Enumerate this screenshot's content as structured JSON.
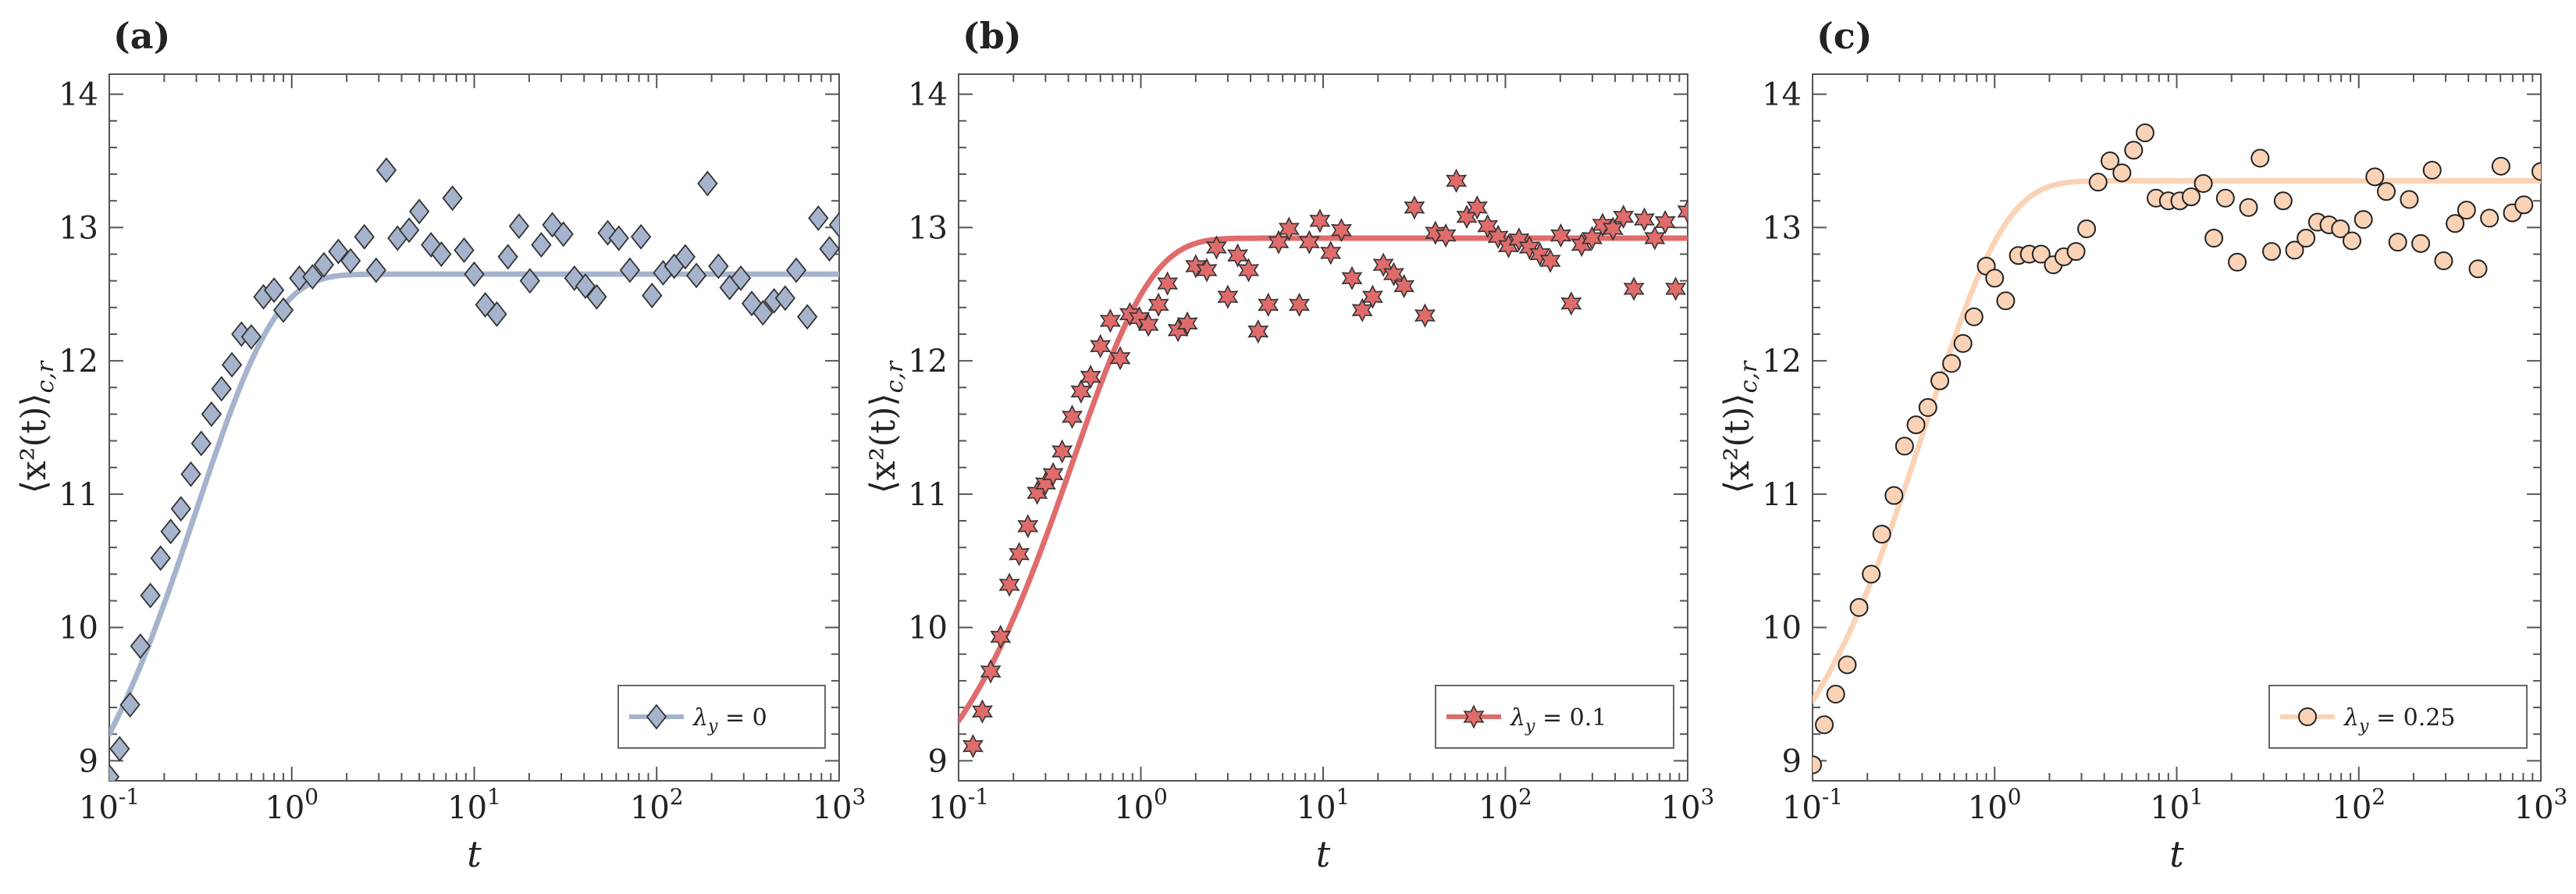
{
  "chart_data": [
    {
      "panel": "(a)",
      "type": "scatter",
      "xscale": "log",
      "xlim": [
        0.1,
        1000
      ],
      "ylim": [
        8.85,
        14.15
      ],
      "xticks": [
        {
          "base": "10",
          "exp": "-1"
        },
        {
          "base": "10",
          "exp": "0"
        },
        {
          "base": "10",
          "exp": "1"
        },
        {
          "base": "10",
          "exp": "2"
        },
        {
          "base": "10",
          "exp": "3"
        }
      ],
      "yticks": [
        "9",
        "10",
        "11",
        "12",
        "13",
        "14"
      ],
      "xlabel": "t",
      "ylabel": "⟨x²(t)⟩",
      "ylabel_sub": "c,r",
      "legend": {
        "symbol": "λ",
        "sub": "y",
        "text": " = 0",
        "placement": "bottom-right"
      },
      "marker": "diamond",
      "color": "#a5b4cc",
      "edge": "#333333",
      "fit": {
        "plateau": 12.65,
        "y0": 9.2,
        "tau": 0.3
      },
      "points": [
        [
          0.1,
          8.88
        ],
        [
          0.114,
          9.09
        ],
        [
          0.13,
          9.42
        ],
        [
          0.148,
          9.86
        ],
        [
          0.168,
          10.24
        ],
        [
          0.191,
          10.52
        ],
        [
          0.217,
          10.72
        ],
        [
          0.247,
          10.89
        ],
        [
          0.28,
          11.15
        ],
        [
          0.319,
          11.38
        ],
        [
          0.363,
          11.6
        ],
        [
          0.412,
          11.79
        ],
        [
          0.47,
          11.97
        ],
        [
          0.53,
          12.2
        ],
        [
          0.6,
          12.18
        ],
        [
          0.7,
          12.48
        ],
        [
          0.8,
          12.53
        ],
        [
          0.9,
          12.38
        ],
        [
          1.1,
          12.62
        ],
        [
          1.3,
          12.63
        ],
        [
          1.5,
          12.72
        ],
        [
          1.8,
          12.82
        ],
        [
          2.1,
          12.75
        ],
        [
          2.5,
          12.93
        ],
        [
          2.9,
          12.68
        ],
        [
          3.3,
          13.43
        ],
        [
          3.8,
          12.92
        ],
        [
          4.4,
          12.98
        ],
        [
          5.0,
          13.12
        ],
        [
          5.8,
          12.87
        ],
        [
          6.6,
          12.8
        ],
        [
          7.6,
          13.22
        ],
        [
          8.8,
          12.83
        ],
        [
          10.0,
          12.65
        ],
        [
          11.5,
          12.42
        ],
        [
          13.3,
          12.35
        ],
        [
          15.3,
          12.78
        ],
        [
          17.6,
          13.01
        ],
        [
          20.2,
          12.6
        ],
        [
          23.3,
          12.87
        ],
        [
          26.8,
          13.02
        ],
        [
          30.8,
          12.95
        ],
        [
          35.4,
          12.62
        ],
        [
          40.7,
          12.56
        ],
        [
          46.9,
          12.48
        ],
        [
          53.9,
          12.96
        ],
        [
          62.0,
          12.92
        ],
        [
          71.3,
          12.68
        ],
        [
          82.0,
          12.93
        ],
        [
          94.3,
          12.49
        ],
        [
          108.5,
          12.66
        ],
        [
          124.8,
          12.71
        ],
        [
          143.5,
          12.78
        ],
        [
          165.0,
          12.64
        ],
        [
          190.0,
          13.33
        ],
        [
          218.0,
          12.71
        ],
        [
          251.0,
          12.55
        ],
        [
          289.0,
          12.62
        ],
        [
          332.0,
          12.43
        ],
        [
          382.0,
          12.36
        ],
        [
          440.0,
          12.45
        ],
        [
          506.0,
          12.47
        ],
        [
          582.0,
          12.68
        ],
        [
          669.0,
          12.33
        ],
        [
          769.0,
          13.07
        ],
        [
          885.0,
          12.84
        ],
        [
          1000.0,
          13.02
        ]
      ]
    },
    {
      "panel": "(b)",
      "type": "scatter",
      "xscale": "log",
      "xlim": [
        0.1,
        1000
      ],
      "ylim": [
        8.85,
        14.15
      ],
      "xticks": [
        {
          "base": "10",
          "exp": "-1"
        },
        {
          "base": "10",
          "exp": "0"
        },
        {
          "base": "10",
          "exp": "1"
        },
        {
          "base": "10",
          "exp": "2"
        },
        {
          "base": "10",
          "exp": "3"
        }
      ],
      "yticks": [
        "9",
        "10",
        "11",
        "12",
        "13",
        "14"
      ],
      "xlabel": "t",
      "ylabel": "⟨x²(t)⟩",
      "ylabel_sub": "c,r",
      "legend": {
        "symbol": "λ",
        "sub": "y",
        "text": " = 0.1",
        "placement": "bottom-right"
      },
      "marker": "star",
      "color": "#e06b6b",
      "edge": "#333333",
      "fit": {
        "plateau": 12.92,
        "y0": 9.3,
        "tau": 0.42
      },
      "points": [
        [
          0.12,
          9.11
        ],
        [
          0.135,
          9.37
        ],
        [
          0.15,
          9.67
        ],
        [
          0.17,
          9.93
        ],
        [
          0.19,
          10.32
        ],
        [
          0.215,
          10.55
        ],
        [
          0.24,
          10.76
        ],
        [
          0.27,
          11.01
        ],
        [
          0.3,
          11.08
        ],
        [
          0.33,
          11.15
        ],
        [
          0.37,
          11.32
        ],
        [
          0.42,
          11.58
        ],
        [
          0.47,
          11.77
        ],
        [
          0.53,
          11.88
        ],
        [
          0.6,
          12.11
        ],
        [
          0.68,
          12.3
        ],
        [
          0.77,
          12.02
        ],
        [
          0.87,
          12.35
        ],
        [
          0.98,
          12.32
        ],
        [
          1.1,
          12.27
        ],
        [
          1.25,
          12.42
        ],
        [
          1.4,
          12.58
        ],
        [
          1.6,
          12.23
        ],
        [
          1.8,
          12.28
        ],
        [
          2.0,
          12.71
        ],
        [
          2.3,
          12.68
        ],
        [
          2.6,
          12.85
        ],
        [
          3.0,
          12.48
        ],
        [
          3.4,
          12.79
        ],
        [
          3.9,
          12.68
        ],
        [
          4.4,
          12.22
        ],
        [
          5.0,
          12.42
        ],
        [
          5.7,
          12.89
        ],
        [
          6.5,
          12.99
        ],
        [
          7.4,
          12.42
        ],
        [
          8.4,
          12.89
        ],
        [
          9.6,
          13.05
        ],
        [
          11.0,
          12.81
        ],
        [
          12.6,
          12.98
        ],
        [
          14.4,
          12.62
        ],
        [
          16.4,
          12.38
        ],
        [
          18.7,
          12.48
        ],
        [
          21.4,
          12.72
        ],
        [
          24.4,
          12.65
        ],
        [
          27.8,
          12.56
        ],
        [
          31.7,
          13.15
        ],
        [
          36.2,
          12.34
        ],
        [
          41.3,
          12.96
        ],
        [
          47.1,
          12.94
        ],
        [
          53.8,
          13.35
        ],
        [
          61.4,
          13.08
        ],
        [
          70.0,
          13.15
        ],
        [
          79.9,
          13.01
        ],
        [
          91.2,
          12.93
        ],
        [
          104.0,
          12.86
        ],
        [
          118.7,
          12.91
        ],
        [
          135.5,
          12.85
        ],
        [
          154.6,
          12.8
        ],
        [
          176.4,
          12.75
        ],
        [
          201.3,
          12.94
        ],
        [
          229.7,
          12.43
        ],
        [
          262.1,
          12.87
        ],
        [
          299.0,
          12.92
        ],
        [
          341.2,
          13.02
        ],
        [
          389.3,
          12.99
        ],
        [
          444.2,
          13.08
        ],
        [
          506.9,
          12.54
        ],
        [
          578.4,
          13.06
        ],
        [
          660.0,
          12.92
        ],
        [
          753.0,
          13.04
        ],
        [
          859.5,
          12.54
        ],
        [
          1000.0,
          13.12
        ]
      ]
    },
    {
      "panel": "(c)",
      "type": "scatter",
      "xscale": "log",
      "xlim": [
        0.1,
        1000
      ],
      "ylim": [
        8.85,
        14.15
      ],
      "xticks": [
        {
          "base": "10",
          "exp": "-1"
        },
        {
          "base": "10",
          "exp": "0"
        },
        {
          "base": "10",
          "exp": "1"
        },
        {
          "base": "10",
          "exp": "2"
        },
        {
          "base": "10",
          "exp": "3"
        }
      ],
      "yticks": [
        "9",
        "10",
        "11",
        "12",
        "13",
        "14"
      ],
      "xlabel": "t",
      "ylabel": "⟨x²(t)⟩",
      "ylabel_sub": "c,r",
      "legend": {
        "symbol": "λ",
        "sub": "y",
        "text": " = 0.25",
        "placement": "bottom-right"
      },
      "marker": "circle",
      "color": "#fad3b6",
      "edge": "#222222",
      "fit": {
        "plateau": 13.35,
        "y0": 9.45,
        "tau": 0.42
      },
      "points": [
        [
          0.1,
          8.97
        ],
        [
          0.116,
          9.27
        ],
        [
          0.134,
          9.5
        ],
        [
          0.155,
          9.72
        ],
        [
          0.18,
          10.15
        ],
        [
          0.21,
          10.4
        ],
        [
          0.24,
          10.7
        ],
        [
          0.28,
          10.99
        ],
        [
          0.32,
          11.36
        ],
        [
          0.37,
          11.52
        ],
        [
          0.43,
          11.65
        ],
        [
          0.5,
          11.85
        ],
        [
          0.58,
          11.98
        ],
        [
          0.67,
          12.13
        ],
        [
          0.77,
          12.33
        ],
        [
          0.9,
          12.71
        ],
        [
          1.0,
          12.62
        ],
        [
          1.15,
          12.45
        ],
        [
          1.35,
          12.79
        ],
        [
          1.55,
          12.8
        ],
        [
          1.8,
          12.8
        ],
        [
          2.1,
          12.72
        ],
        [
          2.4,
          12.78
        ],
        [
          2.8,
          12.82
        ],
        [
          3.2,
          12.99
        ],
        [
          3.7,
          13.34
        ],
        [
          4.3,
          13.5
        ],
        [
          5.0,
          13.41
        ],
        [
          5.8,
          13.58
        ],
        [
          6.7,
          13.71
        ],
        [
          7.7,
          13.22
        ],
        [
          9.0,
          13.2
        ],
        [
          10.4,
          13.2
        ],
        [
          12.0,
          13.23
        ],
        [
          14.0,
          13.33
        ],
        [
          16.0,
          12.92
        ],
        [
          18.5,
          13.22
        ],
        [
          21.5,
          12.74
        ],
        [
          24.8,
          13.15
        ],
        [
          28.7,
          13.52
        ],
        [
          33.2,
          12.82
        ],
        [
          38.4,
          13.2
        ],
        [
          44.4,
          12.83
        ],
        [
          51.3,
          12.92
        ],
        [
          59.3,
          13.04
        ],
        [
          68.6,
          13.02
        ],
        [
          79.3,
          12.99
        ],
        [
          91.7,
          12.9
        ],
        [
          106.0,
          13.06
        ],
        [
          122.5,
          13.38
        ],
        [
          141.6,
          13.27
        ],
        [
          163.7,
          12.89
        ],
        [
          189.3,
          13.21
        ],
        [
          218.8,
          12.88
        ],
        [
          252.9,
          13.43
        ],
        [
          292.4,
          12.75
        ],
        [
          338.0,
          13.03
        ],
        [
          390.7,
          13.13
        ],
        [
          451.7,
          12.69
        ],
        [
          522.1,
          13.07
        ],
        [
          603.6,
          13.46
        ],
        [
          697.7,
          13.11
        ],
        [
          806.5,
          13.17
        ],
        [
          1000.0,
          13.42
        ]
      ]
    }
  ]
}
